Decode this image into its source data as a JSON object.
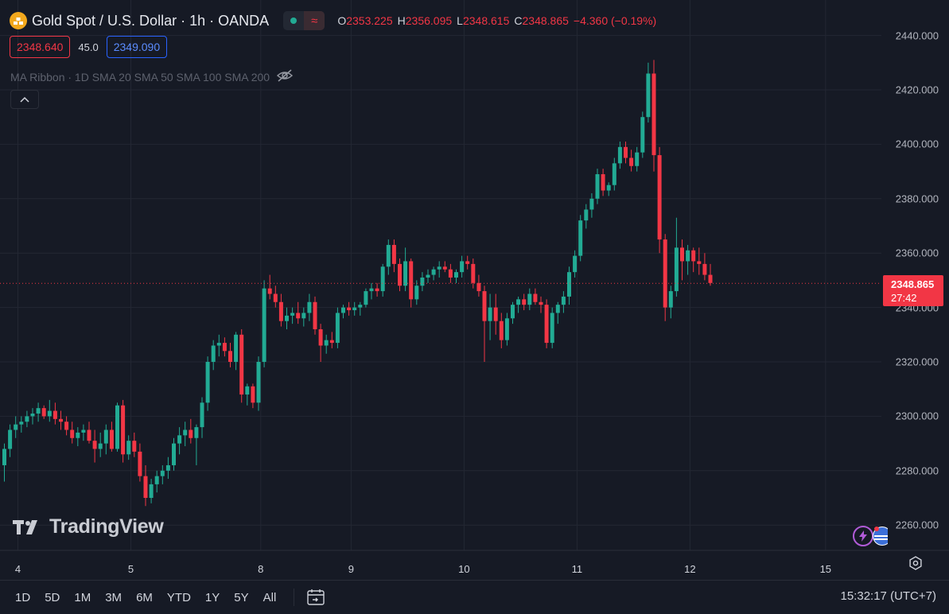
{
  "header": {
    "title": "Gold Spot / U.S. Dollar · 1h · OANDA",
    "ohlc": [
      {
        "key": "O",
        "value": "2353.225"
      },
      {
        "key": "H",
        "value": "2356.095"
      },
      {
        "key": "L",
        "value": "2348.615"
      },
      {
        "key": "C",
        "value": "2348.865"
      }
    ],
    "change": "−4.360 (−0.19%)",
    "status_icon": "market-open-dot",
    "wave_icon": "approx-wave-icon"
  },
  "quote": {
    "bid": "2348.640",
    "spread": "45.0",
    "ask": "2349.090"
  },
  "indicator": {
    "label": "MA Ribbon · 1D SMA 20 SMA 50 SMA 100 SMA 200",
    "icon": "eye-off-icon"
  },
  "watermark": "TradingView",
  "last_price": {
    "value": "2348.865",
    "countdown": "27:42"
  },
  "ranges": [
    "1D",
    "5D",
    "1M",
    "3M",
    "6M",
    "YTD",
    "1Y",
    "5Y",
    "All"
  ],
  "clock": "15:32:17 (UTC+7)",
  "colors": {
    "up": "#22ab94",
    "down": "#f23645",
    "bg": "#161a25",
    "grid": "#232733"
  },
  "chart_data": {
    "type": "candlestick",
    "interval": "1h",
    "y_ticks": [
      "2440.000",
      "2420.000",
      "2400.000",
      "2380.000",
      "2360.000",
      "2340.000",
      "2320.000",
      "2300.000",
      "2280.000",
      "2260.000"
    ],
    "ylim": [
      2250,
      2445
    ],
    "x_ticks": [
      {
        "label": "4",
        "x": 0
      },
      {
        "label": "5",
        "x": 20
      },
      {
        "label": "8",
        "x": 43
      },
      {
        "label": "9",
        "x": 59
      },
      {
        "label": "10",
        "x": 79
      },
      {
        "label": "11",
        "x": 99
      },
      {
        "label": "12",
        "x": 119
      },
      {
        "label": "15",
        "x": 143
      }
    ],
    "candles": [
      [
        2282,
        2290,
        2276,
        2288
      ],
      [
        2288,
        2297,
        2285,
        2295
      ],
      [
        2295,
        2300,
        2292,
        2297
      ],
      [
        2297,
        2300,
        2294,
        2298
      ],
      [
        2298,
        2302,
        2296,
        2300
      ],
      [
        2300,
        2303,
        2297,
        2301
      ],
      [
        2301,
        2305,
        2298,
        2303
      ],
      [
        2303,
        2304,
        2299,
        2300
      ],
      [
        2300,
        2306,
        2298,
        2302
      ],
      [
        2302,
        2305,
        2297,
        2299
      ],
      [
        2299,
        2302,
        2295,
        2298
      ],
      [
        2298,
        2300,
        2293,
        2295
      ],
      [
        2295,
        2298,
        2290,
        2292
      ],
      [
        2292,
        2296,
        2289,
        2294
      ],
      [
        2294,
        2297,
        2291,
        2295
      ],
      [
        2295,
        2298,
        2290,
        2291
      ],
      [
        2291,
        2295,
        2283,
        2288
      ],
      [
        2288,
        2294,
        2285,
        2290
      ],
      [
        2290,
        2297,
        2286,
        2295
      ],
      [
        2295,
        2298,
        2287,
        2288
      ],
      [
        2288,
        2305,
        2287,
        2304
      ],
      [
        2304,
        2306,
        2283,
        2286
      ],
      [
        2286,
        2293,
        2284,
        2291
      ],
      [
        2291,
        2294,
        2285,
        2287
      ],
      [
        2287,
        2290,
        2276,
        2278
      ],
      [
        2278,
        2282,
        2267,
        2270
      ],
      [
        2270,
        2277,
        2268,
        2275
      ],
      [
        2275,
        2280,
        2272,
        2278
      ],
      [
        2278,
        2282,
        2275,
        2280
      ],
      [
        2280,
        2285,
        2277,
        2282
      ],
      [
        2282,
        2292,
        2280,
        2290
      ],
      [
        2290,
        2296,
        2286,
        2293
      ],
      [
        2293,
        2298,
        2289,
        2295
      ],
      [
        2295,
        2299,
        2290,
        2292
      ],
      [
        2292,
        2297,
        2282,
        2296
      ],
      [
        2296,
        2307,
        2292,
        2305
      ],
      [
        2305,
        2322,
        2302,
        2320
      ],
      [
        2320,
        2328,
        2317,
        2326
      ],
      [
        2326,
        2330,
        2322,
        2327
      ],
      [
        2327,
        2329,
        2322,
        2324
      ],
      [
        2324,
        2327,
        2318,
        2320
      ],
      [
        2320,
        2331,
        2317,
        2330
      ],
      [
        2330,
        2332,
        2305,
        2308
      ],
      [
        2308,
        2312,
        2304,
        2311
      ],
      [
        2311,
        2312,
        2303,
        2305
      ],
      [
        2305,
        2322,
        2302,
        2320
      ],
      [
        2320,
        2350,
        2318,
        2347
      ],
      [
        2347,
        2352,
        2343,
        2345
      ],
      [
        2345,
        2348,
        2340,
        2342
      ],
      [
        2342,
        2345,
        2333,
        2335
      ],
      [
        2335,
        2340,
        2332,
        2337
      ],
      [
        2337,
        2340,
        2334,
        2338
      ],
      [
        2338,
        2342,
        2334,
        2336
      ],
      [
        2336,
        2340,
        2333,
        2338
      ],
      [
        2338,
        2345,
        2335,
        2342
      ],
      [
        2342,
        2344,
        2330,
        2332
      ],
      [
        2332,
        2334,
        2320,
        2326
      ],
      [
        2326,
        2330,
        2323,
        2328
      ],
      [
        2328,
        2331,
        2325,
        2327
      ],
      [
        2327,
        2340,
        2325,
        2338
      ],
      [
        2338,
        2341,
        2336,
        2340
      ],
      [
        2340,
        2342,
        2337,
        2339
      ],
      [
        2339,
        2342,
        2337,
        2340
      ],
      [
        2340,
        2342,
        2337,
        2341
      ],
      [
        2341,
        2347,
        2340,
        2346
      ],
      [
        2346,
        2349,
        2343,
        2347
      ],
      [
        2347,
        2349,
        2344,
        2346
      ],
      [
        2346,
        2356,
        2344,
        2355
      ],
      [
        2355,
        2365,
        2352,
        2363
      ],
      [
        2363,
        2365,
        2353,
        2356
      ],
      [
        2356,
        2358,
        2346,
        2348
      ],
      [
        2348,
        2362,
        2346,
        2357
      ],
      [
        2357,
        2358,
        2340,
        2343
      ],
      [
        2343,
        2350,
        2341,
        2348
      ],
      [
        2348,
        2353,
        2346,
        2351
      ],
      [
        2351,
        2354,
        2349,
        2352
      ],
      [
        2352,
        2355,
        2350,
        2354
      ],
      [
        2354,
        2357,
        2351,
        2355
      ],
      [
        2355,
        2357,
        2353,
        2354
      ],
      [
        2354,
        2356,
        2349,
        2351
      ],
      [
        2351,
        2354,
        2349,
        2353
      ],
      [
        2353,
        2359,
        2351,
        2357
      ],
      [
        2357,
        2359,
        2354,
        2356
      ],
      [
        2356,
        2358,
        2347,
        2349
      ],
      [
        2349,
        2352,
        2344,
        2346
      ],
      [
        2346,
        2348,
        2320,
        2335
      ],
      [
        2335,
        2345,
        2328,
        2340
      ],
      [
        2340,
        2345,
        2330,
        2335
      ],
      [
        2335,
        2338,
        2325,
        2328
      ],
      [
        2328,
        2338,
        2326,
        2336
      ],
      [
        2336,
        2342,
        2334,
        2341
      ],
      [
        2341,
        2344,
        2338,
        2343
      ],
      [
        2343,
        2345,
        2339,
        2341
      ],
      [
        2341,
        2347,
        2339,
        2345
      ],
      [
        2345,
        2347,
        2341,
        2342
      ],
      [
        2342,
        2344,
        2338,
        2341
      ],
      [
        2341,
        2343,
        2325,
        2327
      ],
      [
        2327,
        2340,
        2325,
        2338
      ],
      [
        2338,
        2342,
        2334,
        2341
      ],
      [
        2341,
        2346,
        2338,
        2344
      ],
      [
        2344,
        2355,
        2341,
        2353
      ],
      [
        2353,
        2361,
        2351,
        2359
      ],
      [
        2359,
        2374,
        2357,
        2372
      ],
      [
        2372,
        2378,
        2369,
        2376
      ],
      [
        2376,
        2382,
        2373,
        2380
      ],
      [
        2380,
        2391,
        2378,
        2389
      ],
      [
        2389,
        2391,
        2381,
        2383
      ],
      [
        2383,
        2386,
        2381,
        2385
      ],
      [
        2385,
        2395,
        2383,
        2393
      ],
      [
        2393,
        2401,
        2391,
        2399
      ],
      [
        2399,
        2401,
        2393,
        2395
      ],
      [
        2395,
        2398,
        2390,
        2392
      ],
      [
        2392,
        2399,
        2390,
        2397
      ],
      [
        2397,
        2412,
        2395,
        2410
      ],
      [
        2410,
        2430,
        2408,
        2426
      ],
      [
        2426,
        2431,
        2390,
        2396
      ],
      [
        2396,
        2399,
        2360,
        2365
      ],
      [
        2365,
        2367,
        2335,
        2340
      ],
      [
        2340,
        2348,
        2336,
        2346
      ],
      [
        2346,
        2373,
        2344,
        2362
      ],
      [
        2362,
        2365,
        2350,
        2357
      ],
      [
        2357,
        2363,
        2352,
        2361
      ],
      [
        2361,
        2362,
        2353,
        2357
      ],
      [
        2357,
        2362,
        2352,
        2356
      ],
      [
        2356,
        2360,
        2350,
        2352
      ],
      [
        2352,
        2356,
        2348,
        2349
      ]
    ]
  }
}
